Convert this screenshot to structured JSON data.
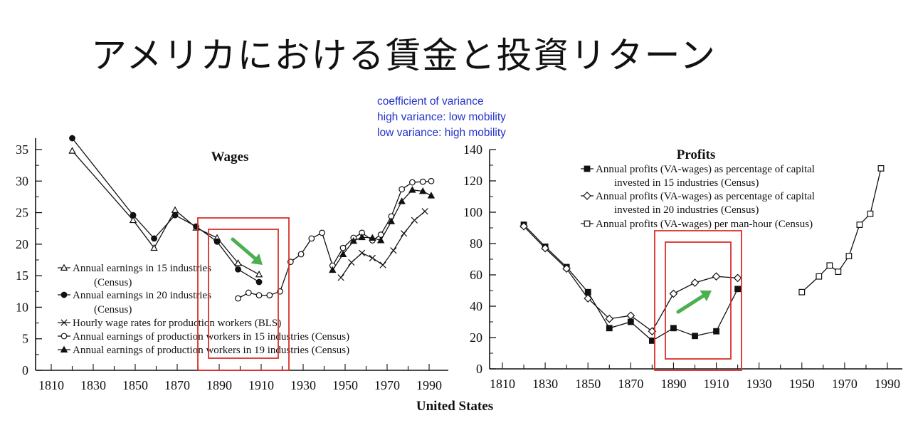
{
  "slide": {
    "title": "アメリカにおける賃金と投資リターン",
    "annotation": [
      "coefficient of variance",
      "high variance: low mobility",
      "low variance: high mobility"
    ],
    "footer": "United States",
    "highlight_color": "#d8302a",
    "arrow_color": "#4caf50"
  },
  "chart_data": [
    {
      "type": "line",
      "title": "Wages",
      "xlabel": "",
      "ylabel": "",
      "xlim": [
        1805,
        1995
      ],
      "ylim": [
        0,
        37
      ],
      "xticks": [
        1810,
        1830,
        1850,
        1870,
        1890,
        1910,
        1930,
        1950,
        1970,
        1990
      ],
      "yticks": [
        0,
        5,
        10,
        15,
        20,
        25,
        30,
        35
      ],
      "grid": false,
      "legend_position": "lower-left",
      "annotation_arrow": {
        "direction": "down-right",
        "meaning": "decline"
      },
      "series": [
        {
          "name": "Annual earnings in 15 industries (Census)",
          "marker": "triangle-open",
          "x": [
            1820,
            1849,
            1859,
            1869,
            1879,
            1889,
            1899,
            1909
          ],
          "y": [
            34.8,
            23.8,
            19.4,
            25.4,
            22.6,
            21.0,
            17.0,
            15.2
          ]
        },
        {
          "name": "Annual earnings in 20 industries (Census)",
          "marker": "circle-filled",
          "x": [
            1820,
            1849,
            1859,
            1869,
            1879,
            1889,
            1899,
            1909
          ],
          "y": [
            36.8,
            24.6,
            20.9,
            24.6,
            22.8,
            20.4,
            16.0,
            14.0
          ]
        },
        {
          "name": "Hourly wage rates for production workers (BLS)",
          "marker": "x",
          "x": [
            1948,
            1953,
            1958,
            1963,
            1968,
            1973,
            1978,
            1983,
            1988
          ],
          "y": [
            14.7,
            17.1,
            18.6,
            17.8,
            16.7,
            19.0,
            21.7,
            23.8,
            25.2
          ]
        },
        {
          "name": "Annual earnings of production workers in 15 industries (Census)",
          "marker": "circle-open",
          "x": [
            1899,
            1904,
            1909,
            1914,
            1919,
            1924,
            1929,
            1934,
            1939,
            1944,
            1949,
            1954,
            1958,
            1963,
            1967,
            1972,
            1977,
            1982,
            1987,
            1991
          ],
          "y": [
            11.4,
            12.3,
            11.9,
            11.9,
            12.5,
            17.2,
            18.4,
            20.9,
            21.8,
            16.6,
            19.4,
            21.0,
            21.8,
            20.6,
            21.5,
            24.4,
            28.7,
            29.8,
            29.9,
            30.0
          ]
        },
        {
          "name": "Annual earnings of production workers in 19 industries (Census)",
          "marker": "triangle-filled",
          "x": [
            1944,
            1949,
            1954,
            1958,
            1963,
            1967,
            1972,
            1977,
            1982,
            1987,
            1991
          ],
          "y": [
            15.9,
            18.4,
            20.5,
            21.1,
            21.0,
            20.6,
            23.6,
            26.8,
            28.6,
            28.4,
            27.7
          ]
        }
      ]
    },
    {
      "type": "line",
      "title": "Profits",
      "xlabel": "",
      "ylabel": "",
      "xlim": [
        1805,
        1997
      ],
      "ylim": [
        0,
        140
      ],
      "xticks": [
        1810,
        1830,
        1850,
        1870,
        1890,
        1910,
        1930,
        1950,
        1970,
        1990
      ],
      "yticks": [
        0,
        20,
        40,
        60,
        80,
        100,
        120,
        140
      ],
      "grid": false,
      "legend_position": "top-center",
      "annotation_arrow": {
        "direction": "up-right",
        "meaning": "increase"
      },
      "series": [
        {
          "name": "Annual profits (VA-wages) as percentage of capital invested in 15 industries (Census)",
          "marker": "square-filled",
          "x": [
            1820,
            1830,
            1840,
            1850,
            1860,
            1870,
            1880,
            1890,
            1900,
            1910,
            1920
          ],
          "y": [
            92,
            78,
            65,
            49,
            26,
            30,
            18,
            26,
            21,
            24,
            51
          ]
        },
        {
          "name": "Annual profits (VA-wages) as percentage of capital invested in 20 industries (Census)",
          "marker": "diamond-open",
          "x": [
            1820,
            1830,
            1840,
            1850,
            1860,
            1870,
            1880,
            1890,
            1900,
            1910,
            1920
          ],
          "y": [
            91,
            77,
            64,
            45,
            32,
            34,
            24,
            48,
            55,
            59,
            58
          ]
        },
        {
          "name": "Annual profits (VA-wages) per man-hour (Census)",
          "marker": "square-open",
          "x": [
            1950,
            1958,
            1963,
            1967,
            1972,
            1977,
            1982,
            1987
          ],
          "y": [
            49,
            59,
            66,
            62,
            72,
            92,
            99,
            128
          ]
        }
      ]
    }
  ]
}
